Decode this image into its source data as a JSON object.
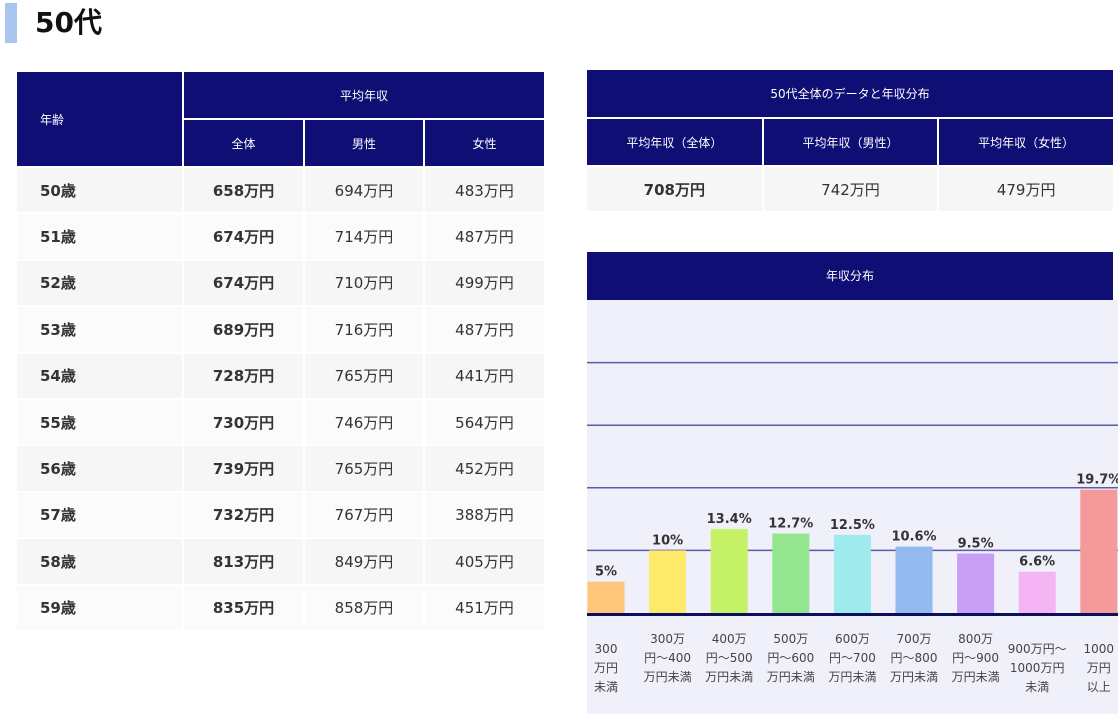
{
  "title": "50代",
  "age_table": {
    "headers": {
      "age": "年齢",
      "avg": "平均年収",
      "all": "全体",
      "male": "男性",
      "female": "女性"
    },
    "rows": [
      {
        "age": "50歳",
        "all": "658万円",
        "male": "694万円",
        "female": "483万円"
      },
      {
        "age": "51歳",
        "all": "674万円",
        "male": "714万円",
        "female": "487万円"
      },
      {
        "age": "52歳",
        "all": "674万円",
        "male": "710万円",
        "female": "499万円"
      },
      {
        "age": "53歳",
        "all": "689万円",
        "male": "716万円",
        "female": "487万円"
      },
      {
        "age": "54歳",
        "all": "728万円",
        "male": "765万円",
        "female": "441万円"
      },
      {
        "age": "55歳",
        "all": "730万円",
        "male": "746万円",
        "female": "564万円"
      },
      {
        "age": "56歳",
        "all": "739万円",
        "male": "765万円",
        "female": "452万円"
      },
      {
        "age": "57歳",
        "all": "732万円",
        "male": "767万円",
        "female": "388万円"
      },
      {
        "age": "58歳",
        "all": "813万円",
        "male": "849万円",
        "female": "405万円"
      },
      {
        "age": "59歳",
        "all": "835万円",
        "male": "858万円",
        "female": "451万円"
      }
    ]
  },
  "summary": {
    "title": "50代全体のデータと年収分布",
    "headers": [
      "平均年収（全体）",
      "平均年収（男性）",
      "平均年収（女性）"
    ],
    "values": [
      "708万円",
      "742万円",
      "479万円"
    ]
  },
  "chart_data": {
    "type": "bar",
    "title": "年収分布",
    "categories": [
      "300万円未満",
      "300万円〜400万円未満",
      "400万円〜500万円未満",
      "500万円〜600万円未満",
      "600万円〜700万円未満",
      "700万円〜800万円未満",
      "800万円〜900万円未満",
      "900万円〜1000万円未満",
      "1000万円以上"
    ],
    "values": [
      5,
      10,
      13.4,
      12.7,
      12.5,
      10.6,
      9.5,
      6.6,
      19.7
    ],
    "labels": [
      "5%",
      "10%",
      "13.4%",
      "12.7%",
      "12.5%",
      "10.6%",
      "9.5%",
      "6.6%",
      "19.7%"
    ],
    "colors": [
      "#fdc67a",
      "#fdea6a",
      "#c5f266",
      "#93e68f",
      "#9eeaec",
      "#93b9ee",
      "#c99ef5",
      "#f5b5f5",
      "#f59a9a"
    ],
    "ylim": [
      0,
      50
    ],
    "grid": true,
    "xlabel": "",
    "ylabel": ""
  }
}
